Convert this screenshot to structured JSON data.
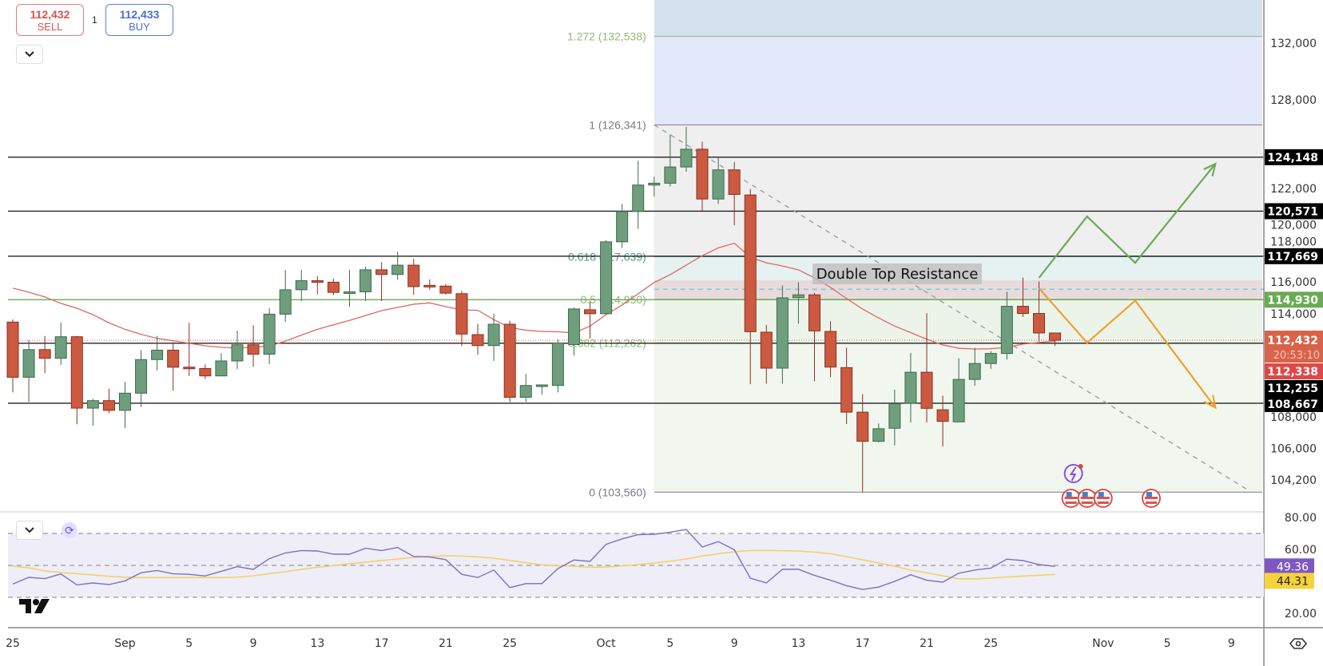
{
  "trade": {
    "sell_price": "112,432",
    "sell_label": "SELL",
    "quantity": "1",
    "buy_price": "112,433",
    "buy_label": "BUY"
  },
  "colors": {
    "up": "#6e9e7e",
    "down": "#cc5a40",
    "ma": "#e06666",
    "rsi": "#7e6fc0",
    "rsi_ma": "#f3cf5e",
    "bull_path": "#6aab55",
    "bear_path": "#f0a030"
  },
  "icons": [
    "chevron-down-icon",
    "refresh-icon",
    "tradingview-logo",
    "lightning-icon",
    "us-flag-icon",
    "eye-icon"
  ],
  "chart_data": {
    "type": "candlestick",
    "y_scale": "log",
    "grid": false,
    "y_ticks": [
      "132,000",
      "128,000",
      "122,000",
      "120,000",
      "118,000",
      "116,000",
      "114,000",
      "108,000",
      "106,000",
      "104,200"
    ],
    "y_tick_values": [
      132000,
      128000,
      122000,
      120000,
      118000,
      116000,
      114000,
      108000,
      106000,
      104200
    ],
    "x_ticks": [
      {
        "label": "25",
        "date": "Aug 25"
      },
      {
        "label": "Sep",
        "date": "Sep 1"
      },
      {
        "label": "5",
        "date": "Sep 5"
      },
      {
        "label": "9",
        "date": "Sep 9"
      },
      {
        "label": "13",
        "date": "Sep 13"
      },
      {
        "label": "17",
        "date": "Sep 17"
      },
      {
        "label": "21",
        "date": "Sep 21"
      },
      {
        "label": "25",
        "date": "Sep 25"
      },
      {
        "label": "Oct",
        "date": "Oct 1"
      },
      {
        "label": "5",
        "date": "Oct 5"
      },
      {
        "label": "9",
        "date": "Oct 9"
      },
      {
        "label": "13",
        "date": "Oct 13"
      },
      {
        "label": "17",
        "date": "Oct 17"
      },
      {
        "label": "21",
        "date": "Oct 21"
      },
      {
        "label": "25",
        "date": "Oct 25"
      },
      {
        "label": "Nov",
        "date": "Nov 1"
      },
      {
        "label": "5",
        "date": "Nov 5"
      },
      {
        "label": "9",
        "date": "Nov 9"
      }
    ],
    "candles": [
      [
        "Aug 25",
        113545,
        113709,
        109307,
        110204
      ],
      [
        "Aug 26",
        110204,
        112437,
        108737,
        111866
      ],
      [
        "Aug 27",
        111866,
        112698,
        110449,
        111345
      ],
      [
        "Aug 28",
        111345,
        113529,
        110938,
        112649
      ],
      [
        "Aug 29",
        112649,
        112700,
        107433,
        108378
      ],
      [
        "Aug 30",
        108378,
        108932,
        107352,
        108818
      ],
      [
        "Aug 31",
        108818,
        109519,
        108085,
        108248
      ],
      [
        "Sep 1",
        108248,
        109927,
        107221,
        109258
      ],
      [
        "Sep 2",
        109258,
        111834,
        108444,
        111263
      ],
      [
        "Sep 3",
        111263,
        112698,
        110612,
        111834
      ],
      [
        "Sep 4",
        111834,
        112323,
        109405,
        110808
      ],
      [
        "Sep 5",
        110808,
        113497,
        110285,
        110760
      ],
      [
        "Sep 6",
        110727,
        110971,
        110106,
        110285
      ],
      [
        "Sep 7",
        110285,
        111638,
        110285,
        111182
      ],
      [
        "Sep 8",
        111182,
        113024,
        110694,
        112160
      ],
      [
        "Sep 9",
        112160,
        113350,
        110824,
        111590
      ],
      [
        "Sep 10",
        111590,
        114404,
        110987,
        114034
      ],
      [
        "Sep 11",
        114034,
        116805,
        113545,
        115550
      ],
      [
        "Sep 12",
        115550,
        116805,
        114849,
        116120
      ],
      [
        "Sep 13",
        116120,
        116397,
        115257,
        116022
      ],
      [
        "Sep 14",
        116022,
        116234,
        115224,
        115387
      ],
      [
        "Sep 15",
        115338,
        116805,
        114490,
        115420
      ],
      [
        "Sep 16",
        115420,
        117001,
        114849,
        116805
      ],
      [
        "Sep 17",
        116805,
        117294,
        114849,
        116512
      ],
      [
        "Sep 18",
        116512,
        117946,
        116186,
        117099
      ],
      [
        "Sep 19",
        117099,
        117506,
        115224,
        115746
      ],
      [
        "Sep 20",
        115827,
        116202,
        115550,
        115795
      ],
      [
        "Sep 21",
        115779,
        115909,
        115257,
        115338
      ],
      [
        "Sep 22",
        115306,
        115469,
        112079,
        112812
      ],
      [
        "Sep 23",
        112779,
        113432,
        111557,
        112111
      ],
      [
        "Sep 24",
        112111,
        114067,
        111182,
        113415
      ],
      [
        "Sep 25",
        113415,
        113627,
        108737,
        109014
      ],
      [
        "Sep 26",
        109014,
        110400,
        108737,
        109715
      ],
      [
        "Sep 27",
        109715,
        109780,
        109177,
        109748
      ],
      [
        "Sep 28",
        109715,
        112486,
        109307,
        112274
      ],
      [
        "Sep 29",
        112173,
        114438,
        111506,
        114356
      ],
      [
        "Sep 30",
        114307,
        114848,
        112550,
        114061
      ],
      [
        "Oct 1",
        114061,
        118700,
        114020,
        118588
      ],
      [
        "Oct 2",
        118588,
        121049,
        118200,
        120554
      ],
      [
        "Oct 3",
        120554,
        123918,
        119422,
        122290
      ],
      [
        "Oct 4",
        122290,
        122856,
        121528,
        122414
      ],
      [
        "Oct 5",
        122414,
        125675,
        122201,
        123493
      ],
      [
        "Oct 6",
        123493,
        126200,
        123174,
        124688
      ],
      [
        "Oct 7",
        124688,
        125190,
        120607,
        121369
      ],
      [
        "Oct 8",
        121369,
        124148,
        121050,
        123299
      ],
      [
        "Oct 9",
        123299,
        123830,
        119654,
        121670
      ],
      [
        "Oct 10",
        121635,
        122024,
        109791,
        112957
      ],
      [
        "Oct 11",
        112927,
        113370,
        109823,
        110749
      ],
      [
        "Oct 12",
        110749,
        115822,
        109823,
        115045
      ],
      [
        "Oct 13",
        115064,
        116022,
        113445,
        115233
      ],
      [
        "Oct 14",
        115233,
        115352,
        109966,
        113005
      ],
      [
        "Oct 15",
        112973,
        113592,
        110224,
        110813
      ],
      [
        "Oct 16",
        110781,
        111983,
        107450,
        108143
      ],
      [
        "Oct 17",
        108143,
        109204,
        103560,
        106449
      ],
      [
        "Oct 18",
        106449,
        107485,
        106372,
        107174
      ],
      [
        "Oct 19",
        107204,
        109459,
        106218,
        108636
      ],
      [
        "Oct 20",
        108667,
        111666,
        107543,
        110504
      ],
      [
        "Oct 21",
        110504,
        114090,
        107543,
        108366
      ],
      [
        "Oct 22",
        108281,
        109113,
        106157,
        107604
      ],
      [
        "Oct 23",
        107574,
        111347,
        107543,
        110076
      ],
      [
        "Oct 24",
        110076,
        111983,
        109696,
        111029
      ],
      [
        "Oct 25",
        111029,
        111780,
        110712,
        111634
      ],
      [
        "Oct 26",
        111634,
        115424,
        111267,
        114520
      ],
      [
        "Oct 27",
        114520,
        116318,
        113868,
        114077
      ],
      [
        "Oct 28",
        114077,
        116066,
        112353,
        112878
      ],
      [
        "Oct 29",
        112878,
        112878,
        112090,
        112432
      ]
    ],
    "moving_average": [
      115650,
      115400,
      115100,
      114700,
      114400,
      114000,
      113500,
      113100,
      112800,
      112550,
      112400,
      112250,
      112100,
      112000,
      111970,
      112000,
      112080,
      112380,
      112750,
      113100,
      113380,
      113650,
      113950,
      114250,
      114450,
      114650,
      114730,
      114500,
      114300,
      114270,
      113700,
      113200,
      113050,
      112970,
      112950,
      112880,
      113300,
      114000,
      114600,
      115300,
      116000,
      116500,
      117100,
      117700,
      118200,
      118500,
      117600,
      117250,
      117050,
      116800,
      116300,
      115700,
      115000,
      114350,
      113800,
      113300,
      112900,
      112500,
      112150,
      111950,
      111900,
      111920,
      112000,
      112200,
      112300,
      112380
    ],
    "horizontal_levels": [
      {
        "price": 124148,
        "label": "124,148",
        "style": "black"
      },
      {
        "price": 120571,
        "label": "120,571",
        "style": "black"
      },
      {
        "price": 117669,
        "label": "117,669",
        "style": "black"
      },
      {
        "price": 114930,
        "label": "114,930",
        "style": "green"
      },
      {
        "price": 112255,
        "label": "112,255",
        "style": "black"
      },
      {
        "price": 108667,
        "label": "108,667",
        "style": "black"
      }
    ],
    "current_price": {
      "price": 112432,
      "label": "112,432",
      "countdown": "20:53:10"
    },
    "extra_price_label": {
      "price": 112338,
      "label": "112,338"
    },
    "fibonacci": {
      "start_date": "Oct 4",
      "levels": [
        {
          "ratio": 1.272,
          "price": 132538,
          "label": "1.272 (132,538)",
          "color": "#8dbb73"
        },
        {
          "ratio": 1,
          "price": 126341,
          "label": "1 (126,341)",
          "color": "#787b86"
        },
        {
          "ratio": 0.618,
          "price": 117639,
          "label": "0.618 (117,639)",
          "color": "#4a9a87"
        },
        {
          "ratio": 0.5,
          "price": 114950,
          "label": "0.5 (114,950)",
          "color": "#8dbb73"
        },
        {
          "ratio": 0.382,
          "price": 112262,
          "label": "0.382 (112,262)",
          "color": "#8dbb73"
        },
        {
          "ratio": 0,
          "price": 103560,
          "label": "0 (103,560)",
          "color": "#787b86"
        }
      ]
    },
    "resistance_zone": {
      "label": "Double Top Resistance",
      "low": 114930,
      "high": 116150,
      "mid_dashed": 115580,
      "start_date": "Oct 4"
    },
    "trendline": {
      "from": [
        "Oct 4",
        126341
      ],
      "to": [
        "Nov 10",
        103700
      ]
    },
    "bull_scenario": [
      [
        "Oct 28",
        116300
      ],
      [
        "Oct 31",
        120230
      ],
      [
        "Nov 3",
        117250
      ],
      [
        "Nov 8",
        123700
      ]
    ],
    "bear_scenario": [
      [
        "Oct 28",
        115650
      ],
      [
        "Oct 31",
        112280
      ],
      [
        "Nov 3",
        114870
      ],
      [
        "Nov 8",
        108410
      ]
    ],
    "events": {
      "flags": [
        "Oct 30",
        "Oct 31",
        "Nov 1",
        "Nov 4"
      ],
      "lightning": "Oct 30"
    },
    "rsi": {
      "ticks": [
        "80.00",
        "60.00",
        "20.00"
      ],
      "tick_values": [
        80,
        60,
        20
      ],
      "bands": [
        70,
        50,
        30
      ],
      "values": [
        38.3,
        42.5,
        41.7,
        44.6,
        37.8,
        39,
        38,
        40.3,
        45.4,
        46.8,
        44.7,
        44.4,
        43.4,
        46.3,
        49.2,
        47.5,
        54.2,
        57.8,
        59.3,
        59,
        57,
        57,
        60.7,
        59.3,
        61.2,
        55.6,
        55.3,
        53.6,
        44.4,
        42.4,
        47.1,
        36.1,
        38.6,
        38.6,
        48,
        53.4,
        52.5,
        63.2,
        66.6,
        69.2,
        69.5,
        70.8,
        72.5,
        61.5,
        64.9,
        59.8,
        42,
        39,
        47.5,
        47.6,
        43.7,
        40.7,
        37.3,
        34.9,
        36.4,
        40,
        44.1,
        40.7,
        39.5,
        45.1,
        47.1,
        48.3,
        53.9,
        53,
        50.5,
        49.36
      ],
      "ma_values": [
        49.5,
        48.5,
        46.5,
        45.5,
        44.8,
        44,
        43.2,
        42.6,
        42.4,
        42.4,
        42.4,
        42.4,
        42.4,
        42.4,
        42.6,
        43.5,
        44.8,
        46,
        47.5,
        48.8,
        49.8,
        51,
        52,
        53,
        54,
        55,
        55.6,
        56,
        55.8,
        55.4,
        54.5,
        53.2,
        51.6,
        50.3,
        49.8,
        49.5,
        48.8,
        49,
        49.7,
        50.5,
        51.5,
        52.6,
        54,
        55.8,
        57.3,
        58.5,
        59.3,
        59.3,
        59.2,
        59,
        58.3,
        57.3,
        55.5,
        53.5,
        51.5,
        49.5,
        47,
        45.4,
        43.5,
        41.6,
        41.5,
        42,
        42.7,
        43.3,
        43.8,
        44.31
      ],
      "last_label": "49.36",
      "ma_last_label": "44.31"
    }
  }
}
